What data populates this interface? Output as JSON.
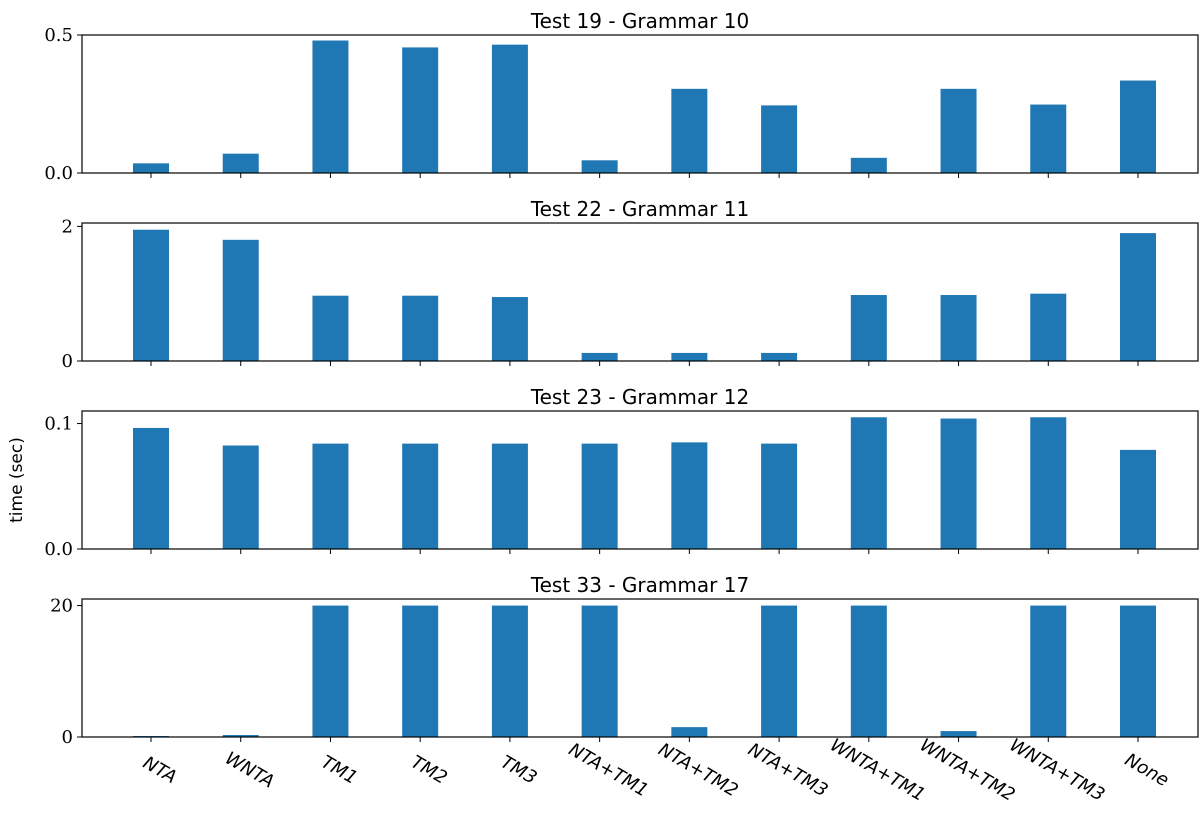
{
  "chart_data": [
    {
      "type": "bar",
      "title": "Test 19 - Grammar 10",
      "categories": [
        "NTA",
        "WNTA",
        "TM1",
        "TM2",
        "TM3",
        "NTA+TM1",
        "NTA+TM2",
        "NTA+TM3",
        "WNTA+TM1",
        "WNTA+TM2",
        "WNTA+TM3",
        "None"
      ],
      "values": [
        0.035,
        0.07,
        0.48,
        0.455,
        0.465,
        0.046,
        0.305,
        0.245,
        0.055,
        0.305,
        0.248,
        0.335
      ],
      "ylim": [
        0,
        0.5
      ],
      "yticks": [
        0.0,
        0.5
      ],
      "ytick_labels": [
        "0.0",
        "0.5"
      ],
      "xlabel": "",
      "ylabel": "",
      "color": "#1f77b4",
      "grid": false
    },
    {
      "type": "bar",
      "title": "Test 22 - Grammar 11",
      "categories": [
        "NTA",
        "WNTA",
        "TM1",
        "TM2",
        "TM3",
        "NTA+TM1",
        "NTA+TM2",
        "NTA+TM3",
        "WNTA+TM1",
        "WNTA+TM2",
        "WNTA+TM3",
        "None"
      ],
      "values": [
        1.95,
        1.8,
        0.97,
        0.97,
        0.95,
        0.12,
        0.12,
        0.12,
        0.98,
        0.98,
        1.0,
        1.9
      ],
      "ylim": [
        0,
        2.05
      ],
      "yticks": [
        0,
        2
      ],
      "ytick_labels": [
        "0",
        "2"
      ],
      "xlabel": "",
      "ylabel": "",
      "color": "#1f77b4",
      "grid": false
    },
    {
      "type": "bar",
      "title": "Test 23 - Grammar 12",
      "categories": [
        "NTA",
        "WNTA",
        "TM1",
        "TM2",
        "TM3",
        "NTA+TM1",
        "NTA+TM2",
        "NTA+TM3",
        "WNTA+TM1",
        "WNTA+TM2",
        "WNTA+TM3",
        "None"
      ],
      "values": [
        0.0965,
        0.0825,
        0.084,
        0.084,
        0.084,
        0.084,
        0.085,
        0.084,
        0.105,
        0.104,
        0.105,
        0.079
      ],
      "ylim": [
        0,
        0.11
      ],
      "yticks": [
        0.0,
        0.1
      ],
      "ytick_labels": [
        "0.0",
        "0.1"
      ],
      "xlabel": "",
      "ylabel": "time (sec)",
      "color": "#1f77b4",
      "grid": false
    },
    {
      "type": "bar",
      "title": "Test 33 - Grammar 17",
      "categories": [
        "NTA",
        "WNTA",
        "TM1",
        "TM2",
        "TM3",
        "NTA+TM1",
        "NTA+TM2",
        "NTA+TM3",
        "WNTA+TM1",
        "WNTA+TM2",
        "WNTA+TM3",
        "None"
      ],
      "values": [
        0.15,
        0.3,
        20,
        20,
        20,
        20,
        1.5,
        20,
        20,
        0.9,
        20,
        20
      ],
      "ylim": [
        0,
        21
      ],
      "yticks": [
        0,
        20
      ],
      "ytick_labels": [
        "0",
        "20"
      ],
      "xlabel": "",
      "ylabel": "",
      "color": "#1f77b4",
      "grid": false
    }
  ]
}
